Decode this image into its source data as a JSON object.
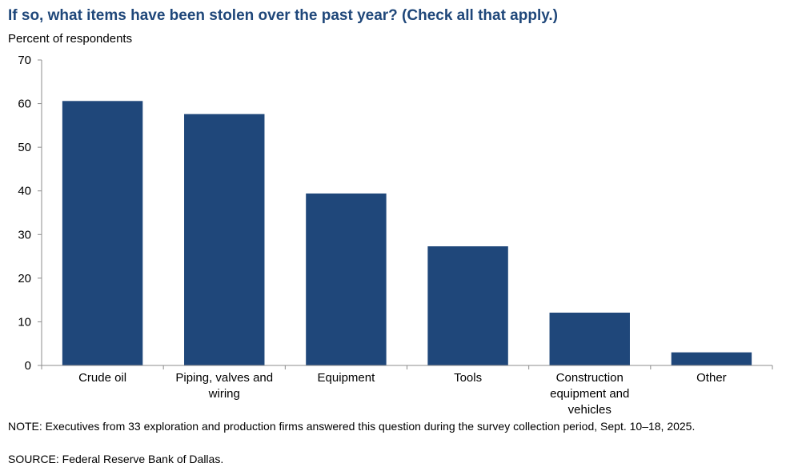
{
  "chart_data": {
    "type": "bar",
    "title": "If so, what items have been stolen over the past year? (Check all that apply.)",
    "ylabel": "Percent of respondents",
    "xlabel": "",
    "categories": [
      "Crude oil",
      "Piping, valves and wiring",
      "Equipment",
      "Tools",
      "Construction equipment and vehicles",
      "Other"
    ],
    "values": [
      60.6,
      57.6,
      39.4,
      27.3,
      12.1,
      3.0
    ],
    "ylim": [
      0,
      70
    ],
    "yticks": [
      "0",
      "10",
      "20",
      "30",
      "40",
      "50",
      "60",
      "70"
    ],
    "grid": false,
    "bar_color": "#1f477a",
    "title_color": "#1f477a"
  },
  "footer": {
    "note": "NOTE: Executives from 33 exploration and production firms answered this question during the survey collection period, Sept. 10–18, 2025.",
    "source": "SOURCE: Federal Reserve Bank of Dallas."
  }
}
